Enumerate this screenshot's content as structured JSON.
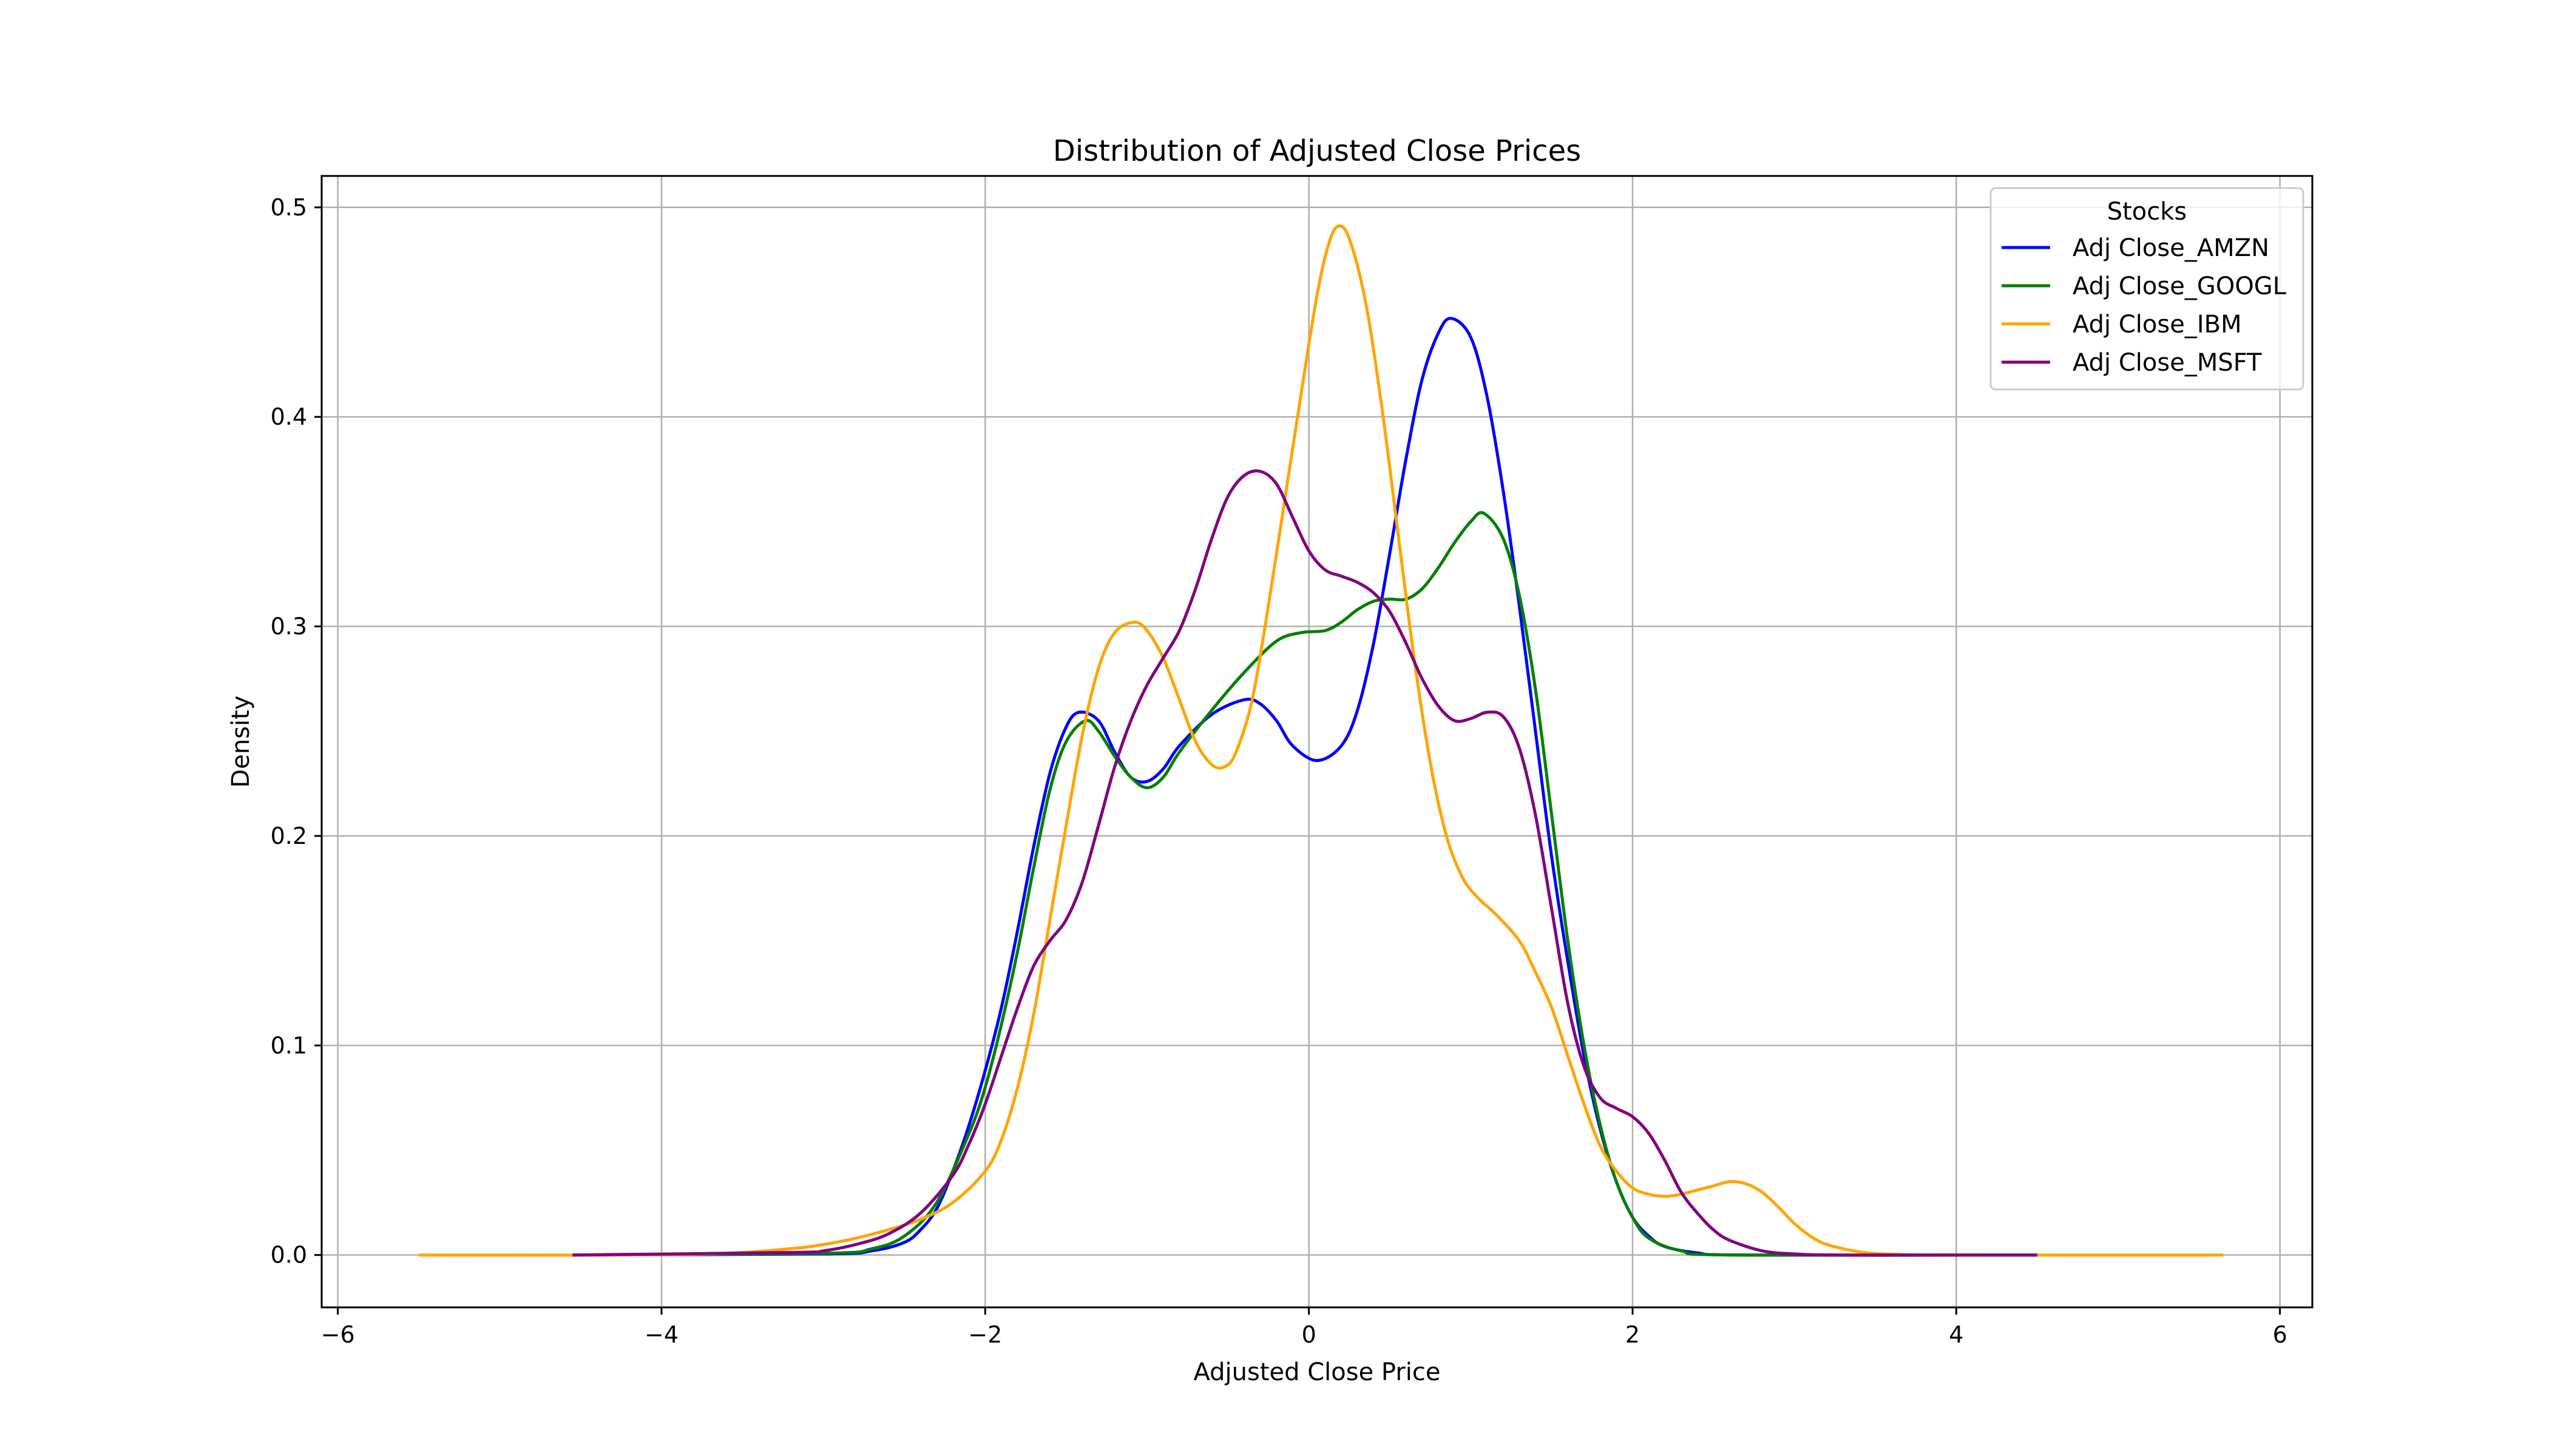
{
  "chart_data": {
    "type": "line",
    "title": "Distribution of Adjusted Close Prices",
    "xlabel": "Adjusted Close Price",
    "ylabel": "Density",
    "xlim": [
      -6.1,
      6.2
    ],
    "ylim": [
      -0.025,
      0.515
    ],
    "x_ticks": [
      -6,
      -4,
      -2,
      0,
      2,
      4,
      6
    ],
    "x_tick_labels": [
      "−6",
      "−4",
      "−2",
      "0",
      "2",
      "4",
      "6"
    ],
    "y_ticks": [
      0.0,
      0.1,
      0.2,
      0.3,
      0.4,
      0.5
    ],
    "y_tick_labels": [
      "0.0",
      "0.1",
      "0.2",
      "0.3",
      "0.4",
      "0.5"
    ],
    "grid": true,
    "legend": {
      "title": "Stocks",
      "placement": "top-right"
    },
    "series": [
      {
        "name": "Adj Close_AMZN",
        "color": "#0000ff",
        "points": [
          [
            -4.55,
            0
          ],
          [
            -3.0,
            0.0005
          ],
          [
            -2.7,
            0.002
          ],
          [
            -2.5,
            0.006
          ],
          [
            -2.4,
            0.012
          ],
          [
            -2.3,
            0.022
          ],
          [
            -2.2,
            0.04
          ],
          [
            -2.1,
            0.062
          ],
          [
            -2.0,
            0.088
          ],
          [
            -1.9,
            0.118
          ],
          [
            -1.8,
            0.155
          ],
          [
            -1.7,
            0.195
          ],
          [
            -1.6,
            0.23
          ],
          [
            -1.5,
            0.252
          ],
          [
            -1.42,
            0.259
          ],
          [
            -1.3,
            0.255
          ],
          [
            -1.2,
            0.24
          ],
          [
            -1.1,
            0.228
          ],
          [
            -1.0,
            0.226
          ],
          [
            -0.9,
            0.232
          ],
          [
            -0.8,
            0.243
          ],
          [
            -0.6,
            0.258
          ],
          [
            -0.4,
            0.265
          ],
          [
            -0.3,
            0.263
          ],
          [
            -0.2,
            0.255
          ],
          [
            -0.1,
            0.243
          ],
          [
            0.05,
            0.236
          ],
          [
            0.2,
            0.243
          ],
          [
            0.3,
            0.26
          ],
          [
            0.4,
            0.292
          ],
          [
            0.5,
            0.335
          ],
          [
            0.6,
            0.38
          ],
          [
            0.7,
            0.418
          ],
          [
            0.8,
            0.44
          ],
          [
            0.88,
            0.447
          ],
          [
            1.0,
            0.438
          ],
          [
            1.1,
            0.41
          ],
          [
            1.2,
            0.365
          ],
          [
            1.3,
            0.31
          ],
          [
            1.4,
            0.25
          ],
          [
            1.5,
            0.19
          ],
          [
            1.6,
            0.14
          ],
          [
            1.7,
            0.095
          ],
          [
            1.8,
            0.06
          ],
          [
            1.9,
            0.035
          ],
          [
            2.0,
            0.018
          ],
          [
            2.1,
            0.009
          ],
          [
            2.2,
            0.004
          ],
          [
            2.4,
            0.001
          ],
          [
            2.7,
            0
          ],
          [
            4.5,
            0
          ]
        ]
      },
      {
        "name": "Adj Close_GOOGL",
        "color": "#008000",
        "points": [
          [
            -4.55,
            0
          ],
          [
            -3.0,
            0.0008
          ],
          [
            -2.7,
            0.003
          ],
          [
            -2.5,
            0.009
          ],
          [
            -2.3,
            0.025
          ],
          [
            -2.1,
            0.058
          ],
          [
            -2.0,
            0.08
          ],
          [
            -1.9,
            0.11
          ],
          [
            -1.8,
            0.145
          ],
          [
            -1.7,
            0.185
          ],
          [
            -1.6,
            0.222
          ],
          [
            -1.5,
            0.245
          ],
          [
            -1.38,
            0.255
          ],
          [
            -1.3,
            0.25
          ],
          [
            -1.2,
            0.238
          ],
          [
            -1.1,
            0.228
          ],
          [
            -1.0,
            0.223
          ],
          [
            -0.9,
            0.228
          ],
          [
            -0.8,
            0.24
          ],
          [
            -0.6,
            0.26
          ],
          [
            -0.4,
            0.278
          ],
          [
            -0.2,
            0.293
          ],
          [
            -0.05,
            0.297
          ],
          [
            0.1,
            0.298
          ],
          [
            0.2,
            0.302
          ],
          [
            0.3,
            0.308
          ],
          [
            0.4,
            0.312
          ],
          [
            0.5,
            0.313
          ],
          [
            0.6,
            0.313
          ],
          [
            0.7,
            0.318
          ],
          [
            0.8,
            0.328
          ],
          [
            0.9,
            0.34
          ],
          [
            1.0,
            0.35
          ],
          [
            1.08,
            0.354
          ],
          [
            1.2,
            0.342
          ],
          [
            1.3,
            0.315
          ],
          [
            1.4,
            0.27
          ],
          [
            1.5,
            0.21
          ],
          [
            1.6,
            0.15
          ],
          [
            1.7,
            0.1
          ],
          [
            1.8,
            0.062
          ],
          [
            1.9,
            0.035
          ],
          [
            2.0,
            0.018
          ],
          [
            2.1,
            0.008
          ],
          [
            2.3,
            0.002
          ],
          [
            2.6,
            0
          ],
          [
            4.5,
            0
          ]
        ]
      },
      {
        "name": "Adj Close_IBM",
        "color": "#ffa500",
        "points": [
          [
            -5.5,
            0
          ],
          [
            -4.2,
            0
          ],
          [
            -3.6,
            0.0008
          ],
          [
            -3.2,
            0.003
          ],
          [
            -3.0,
            0.005
          ],
          [
            -2.8,
            0.008
          ],
          [
            -2.6,
            0.012
          ],
          [
            -2.4,
            0.017
          ],
          [
            -2.2,
            0.025
          ],
          [
            -2.0,
            0.04
          ],
          [
            -1.9,
            0.055
          ],
          [
            -1.8,
            0.08
          ],
          [
            -1.7,
            0.115
          ],
          [
            -1.6,
            0.16
          ],
          [
            -1.5,
            0.205
          ],
          [
            -1.4,
            0.248
          ],
          [
            -1.3,
            0.28
          ],
          [
            -1.2,
            0.297
          ],
          [
            -1.08,
            0.302
          ],
          [
            -1.0,
            0.298
          ],
          [
            -0.9,
            0.285
          ],
          [
            -0.8,
            0.265
          ],
          [
            -0.7,
            0.245
          ],
          [
            -0.6,
            0.234
          ],
          [
            -0.52,
            0.233
          ],
          [
            -0.45,
            0.24
          ],
          [
            -0.35,
            0.265
          ],
          [
            -0.25,
            0.31
          ],
          [
            -0.15,
            0.36
          ],
          [
            -0.05,
            0.41
          ],
          [
            0.05,
            0.458
          ],
          [
            0.12,
            0.482
          ],
          [
            0.18,
            0.491
          ],
          [
            0.25,
            0.485
          ],
          [
            0.35,
            0.455
          ],
          [
            0.45,
            0.405
          ],
          [
            0.55,
            0.345
          ],
          [
            0.65,
            0.285
          ],
          [
            0.75,
            0.235
          ],
          [
            0.85,
            0.2
          ],
          [
            0.95,
            0.18
          ],
          [
            1.05,
            0.17
          ],
          [
            1.15,
            0.163
          ],
          [
            1.3,
            0.15
          ],
          [
            1.4,
            0.135
          ],
          [
            1.5,
            0.118
          ],
          [
            1.6,
            0.095
          ],
          [
            1.7,
            0.072
          ],
          [
            1.8,
            0.052
          ],
          [
            1.9,
            0.04
          ],
          [
            2.0,
            0.032
          ],
          [
            2.1,
            0.029
          ],
          [
            2.2,
            0.028
          ],
          [
            2.3,
            0.029
          ],
          [
            2.4,
            0.031
          ],
          [
            2.5,
            0.033
          ],
          [
            2.6,
            0.035
          ],
          [
            2.7,
            0.034
          ],
          [
            2.8,
            0.03
          ],
          [
            2.9,
            0.023
          ],
          [
            3.0,
            0.015
          ],
          [
            3.1,
            0.009
          ],
          [
            3.2,
            0.005
          ],
          [
            3.4,
            0.0015
          ],
          [
            3.6,
            0.0004
          ],
          [
            4.0,
            0
          ],
          [
            5.65,
            0
          ]
        ]
      },
      {
        "name": "Adj Close_MSFT",
        "color": "#800080",
        "points": [
          [
            -4.55,
            0
          ],
          [
            -3.2,
            0.0012
          ],
          [
            -3.0,
            0.002
          ],
          [
            -2.8,
            0.005
          ],
          [
            -2.6,
            0.01
          ],
          [
            -2.4,
            0.02
          ],
          [
            -2.2,
            0.038
          ],
          [
            -2.1,
            0.053
          ],
          [
            -2.0,
            0.072
          ],
          [
            -1.9,
            0.095
          ],
          [
            -1.8,
            0.118
          ],
          [
            -1.7,
            0.138
          ],
          [
            -1.6,
            0.15
          ],
          [
            -1.5,
            0.16
          ],
          [
            -1.4,
            0.178
          ],
          [
            -1.3,
            0.205
          ],
          [
            -1.2,
            0.233
          ],
          [
            -1.1,
            0.255
          ],
          [
            -1.0,
            0.272
          ],
          [
            -0.9,
            0.285
          ],
          [
            -0.8,
            0.298
          ],
          [
            -0.7,
            0.318
          ],
          [
            -0.6,
            0.342
          ],
          [
            -0.5,
            0.362
          ],
          [
            -0.4,
            0.372
          ],
          [
            -0.3,
            0.374
          ],
          [
            -0.2,
            0.368
          ],
          [
            -0.1,
            0.352
          ],
          [
            0.0,
            0.336
          ],
          [
            0.1,
            0.327
          ],
          [
            0.2,
            0.324
          ],
          [
            0.3,
            0.321
          ],
          [
            0.4,
            0.316
          ],
          [
            0.5,
            0.307
          ],
          [
            0.6,
            0.292
          ],
          [
            0.7,
            0.275
          ],
          [
            0.8,
            0.262
          ],
          [
            0.9,
            0.255
          ],
          [
            1.0,
            0.256
          ],
          [
            1.1,
            0.259
          ],
          [
            1.2,
            0.257
          ],
          [
            1.3,
            0.242
          ],
          [
            1.4,
            0.21
          ],
          [
            1.5,
            0.165
          ],
          [
            1.6,
            0.12
          ],
          [
            1.7,
            0.09
          ],
          [
            1.8,
            0.075
          ],
          [
            1.9,
            0.07
          ],
          [
            2.0,
            0.066
          ],
          [
            2.1,
            0.058
          ],
          [
            2.2,
            0.045
          ],
          [
            2.3,
            0.03
          ],
          [
            2.4,
            0.02
          ],
          [
            2.5,
            0.012
          ],
          [
            2.6,
            0.007
          ],
          [
            2.8,
            0.002
          ],
          [
            3.0,
            0.0005
          ],
          [
            3.3,
            0
          ],
          [
            4.5,
            0
          ]
        ]
      }
    ]
  }
}
